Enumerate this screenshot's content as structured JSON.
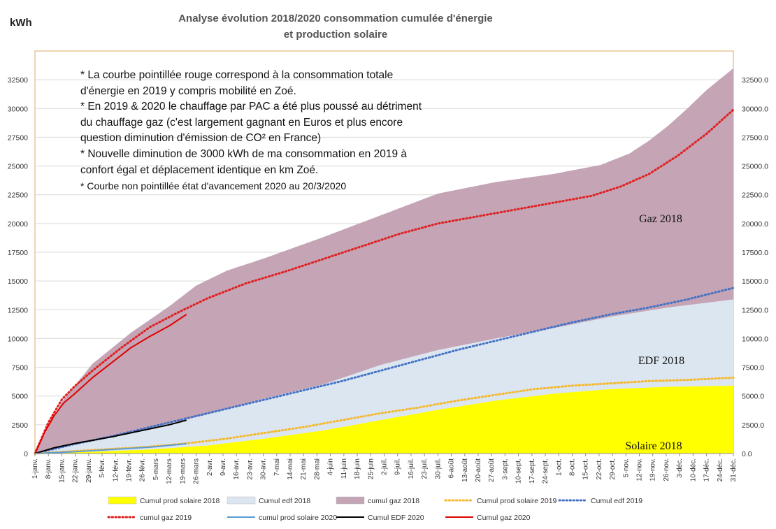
{
  "chart_data": {
    "type": "area",
    "title": "Analyse évolution 2018/2020 consommation cumulée d'énergie et production solaire",
    "title_lines": [
      "Analyse évolution 2018/2020 consommation cumulée d'énergie",
      "et production solaire"
    ],
    "ylabel": "kWh",
    "ylim": [
      0,
      35000
    ],
    "yticks_left": [
      "0",
      "2500",
      "5000",
      "7500",
      "10000",
      "12500",
      "15000",
      "17500",
      "20000",
      "22500",
      "25000",
      "27500",
      "30000",
      "32500"
    ],
    "yticks_right": [
      "0.0",
      "2500.0",
      "5000.0",
      "7500.0",
      "10000.0",
      "12500.0",
      "15000.0",
      "17500.0",
      "20000.0",
      "22500.0",
      "25000.0",
      "27500.0",
      "30000.0",
      "32500.0"
    ],
    "xticks": [
      "1-janv.",
      "8-janv.",
      "15-janv.",
      "22-janv.",
      "29-janv.",
      "5-févr.",
      "12-févr.",
      "19-févr.",
      "26-févr.",
      "5-mars",
      "12-mars",
      "19-mars",
      "26-mars",
      "2-avr.",
      "9-avr.",
      "16-avr.",
      "23-avr.",
      "30-avr.",
      "7-mai",
      "14-mai",
      "21-mai",
      "28-mai",
      "4-juin",
      "11-juin",
      "18-juin",
      "25-juin",
      "2-juil.",
      "9-juil.",
      "16-juil.",
      "23-juil.",
      "30-juil.",
      "6-août",
      "13-août",
      "20-août",
      "27-août",
      "3-sept.",
      "10-sept.",
      "17-sept.",
      "24-sept.",
      "1-oct.",
      "8-oct.",
      "15-oct.",
      "22-oct.",
      "29-oct.",
      "5-nov.",
      "12-nov.",
      "19-nov.",
      "26-nov.",
      "3-déc.",
      "10-déc.",
      "17-déc.",
      "24-déc.",
      "31-déc."
    ],
    "grid": true,
    "legend": "bottom",
    "series": [
      {
        "name": "Cumul gaz 2018",
        "style": "area",
        "color": "#c4a4b5",
        "x": [
          0,
          14,
          30,
          50,
          70,
          84,
          100,
          120,
          150,
          180,
          210,
          240,
          270,
          295,
          310,
          320,
          330,
          340,
          350,
          364
        ],
        "values": [
          0,
          4500,
          7800,
          10500,
          12800,
          14600,
          15900,
          17000,
          18800,
          20700,
          22600,
          23600,
          24300,
          25100,
          26100,
          27200,
          28500,
          30000,
          31600,
          33500
        ]
      },
      {
        "name": "Cumul edf 2018",
        "style": "area",
        "color": "#dce6f1",
        "x": [
          0,
          30,
          60,
          90,
          120,
          150,
          180,
          210,
          240,
          270,
          300,
          330,
          364
        ],
        "values": [
          0,
          1100,
          2200,
          3400,
          4800,
          6000,
          7700,
          9000,
          10000,
          10900,
          11900,
          12700,
          13400
        ]
      },
      {
        "name": "Cumul prod solaire 2018",
        "style": "area",
        "color": "#ffff00",
        "x": [
          0,
          30,
          60,
          90,
          120,
          150,
          180,
          210,
          240,
          270,
          300,
          330,
          364
        ],
        "values": [
          0,
          150,
          350,
          700,
          1300,
          2000,
          2900,
          3800,
          4600,
          5200,
          5600,
          5800,
          5900
        ]
      },
      {
        "name": "cumul gaz 2019",
        "style": "dotted",
        "color": "#e02020",
        "x": [
          0,
          7,
          14,
          21,
          30,
          45,
          60,
          75,
          90,
          110,
          130,
          150,
          170,
          190,
          210,
          230,
          250,
          270,
          290,
          305,
          320,
          335,
          350,
          364
        ],
        "values": [
          0,
          2700,
          4700,
          5900,
          7200,
          9200,
          11000,
          12300,
          13500,
          14800,
          15800,
          16900,
          18000,
          19100,
          20000,
          20600,
          21200,
          21800,
          22400,
          23200,
          24300,
          25900,
          27800,
          29900
        ]
      },
      {
        "name": "Cumul edf 2019",
        "style": "dotted",
        "color": "#4472c4",
        "x": [
          0,
          20,
          40,
          60,
          80,
          100,
          120,
          140,
          160,
          180,
          200,
          220,
          240,
          260,
          280,
          300,
          320,
          340,
          364
        ],
        "values": [
          0,
          800,
          1500,
          2300,
          3100,
          3900,
          4700,
          5500,
          6300,
          7200,
          8100,
          9000,
          9800,
          10600,
          11400,
          12100,
          12700,
          13400,
          14400
        ]
      },
      {
        "name": "Cumul prod solaire 2019",
        "style": "dotted",
        "color": "#f5b829",
        "x": [
          0,
          20,
          40,
          60,
          80,
          100,
          120,
          140,
          160,
          180,
          200,
          220,
          240,
          260,
          280,
          300,
          320,
          340,
          364
        ],
        "values": [
          0,
          200,
          400,
          600,
          900,
          1300,
          1800,
          2300,
          2900,
          3500,
          4000,
          4600,
          5100,
          5600,
          5900,
          6100,
          6300,
          6400,
          6600
        ]
      },
      {
        "name": "Cumul gaz 2020",
        "style": "solid",
        "color": "#e00000",
        "x": [
          0,
          5,
          10,
          15,
          20,
          30,
          40,
          50,
          60,
          70,
          79
        ],
        "values": [
          0,
          1800,
          3300,
          4400,
          5100,
          6600,
          7900,
          9200,
          10200,
          11100,
          12100
        ]
      },
      {
        "name": "Cumul EDF 2020",
        "style": "solid",
        "color": "#000000",
        "x": [
          0,
          10,
          20,
          30,
          40,
          50,
          60,
          70,
          79
        ],
        "values": [
          0,
          500,
          850,
          1150,
          1450,
          1800,
          2150,
          2500,
          2900
        ]
      },
      {
        "name": "cumul prod solaire 2020",
        "style": "solid",
        "color": "#5b9bd5",
        "x": [
          0,
          20,
          40,
          60,
          79
        ],
        "values": [
          0,
          150,
          350,
          550,
          850
        ]
      }
    ],
    "annotations": {
      "gaz": "Gaz 2018",
      "edf": "EDF 2018",
      "solaire": "Solaire 2018"
    }
  },
  "legend_items": [
    {
      "label": "Cumul prod solaire 2018",
      "color": "#ffff00",
      "kind": "box"
    },
    {
      "label": "Cumul edf 2018",
      "color": "#dce6f1",
      "kind": "box"
    },
    {
      "label": "cumul gaz 2018",
      "color": "#c4a4b5",
      "kind": "box"
    },
    {
      "label": "Cumul prod solaire 2019",
      "color": "#f5b829",
      "kind": "dotted"
    },
    {
      "label": "Cumul edf 2019",
      "color": "#4472c4",
      "kind": "dotted"
    },
    {
      "label": "cumul gaz 2019",
      "color": "#e02020",
      "kind": "dotted"
    },
    {
      "label": "cumul prod solaire 2020",
      "color": "#5b9bd5",
      "kind": "solid"
    },
    {
      "label": "Cumul EDF 2020",
      "color": "#000000",
      "kind": "solid"
    },
    {
      "label": "Cumul gaz 2020",
      "color": "#e00000",
      "kind": "solid"
    }
  ],
  "notes": [
    "* La courbe pointillée rouge correspond à la consommation totale d'énergie en 2019 y compris mobilité en Zoé.",
    "* En 2019 & 2020 le chauffage par PAC a été plus poussé au détriment du chauffage gaz (c'est largement gagnant en Euros et plus encore question diminution d'émission de CO² en France)",
    "* Nouvelle diminution de 3000 kWh de ma consommation en 2019 à confort égal et déplacement identique en km Zoé.",
    "* Courbe non pointillée état d'avancement 2020 au 20/3/2020"
  ]
}
